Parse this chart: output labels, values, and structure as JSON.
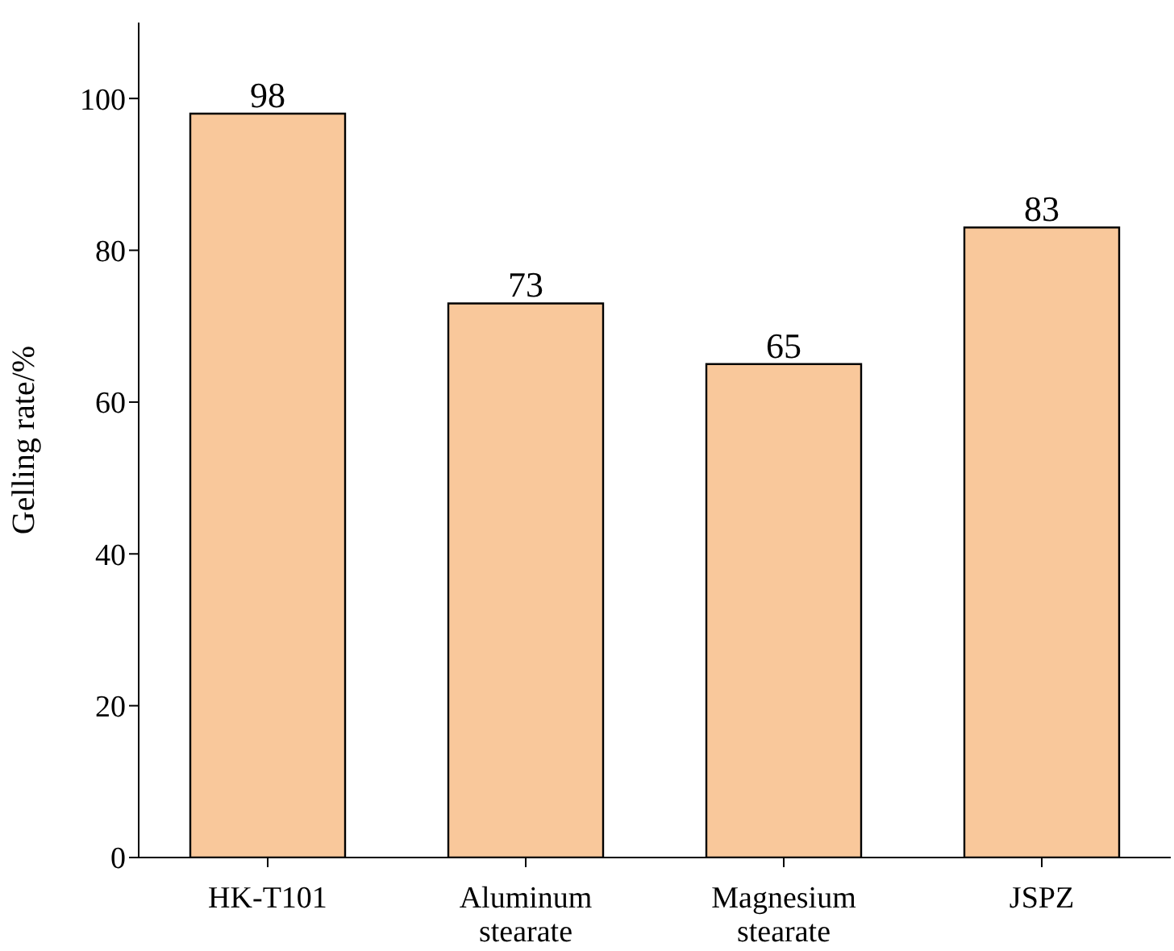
{
  "chart_data": {
    "type": "bar",
    "ylabel": "Gelling rate/%",
    "categories": [
      "HK-T101",
      "Aluminum stearate",
      "Magnesium stearate",
      "JSPZ"
    ],
    "values": [
      98,
      73,
      65,
      83
    ],
    "color": "#f9c89b",
    "ylim": [
      0,
      110
    ],
    "yticks": [
      0,
      20,
      40,
      60,
      80,
      100
    ],
    "grid": false,
    "data_labels": true
  }
}
